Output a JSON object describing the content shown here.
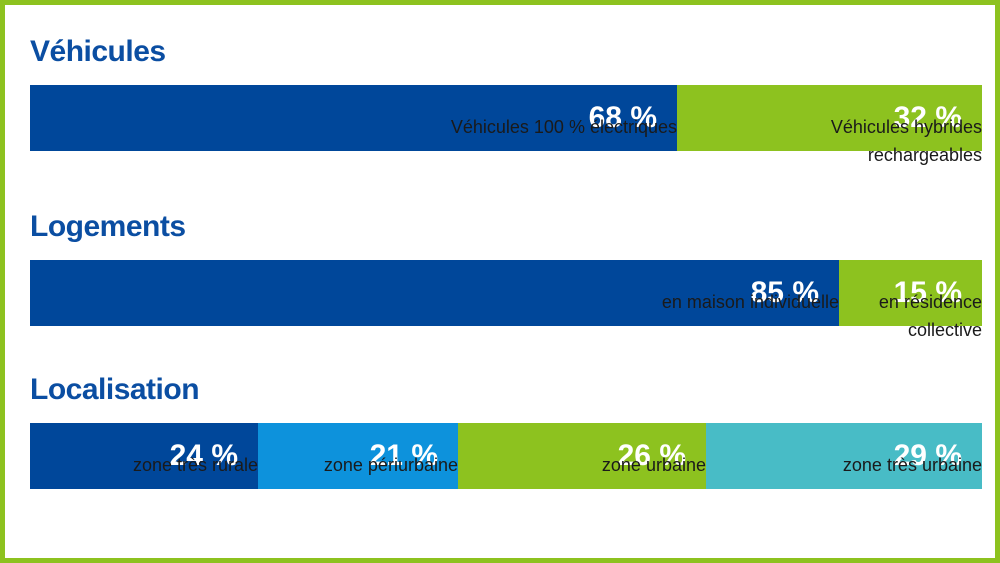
{
  "colors": {
    "dark_blue": "#00479a",
    "mid_blue": "#0d92dc",
    "green": "#8dc21f",
    "teal": "#48bcc6",
    "frame": "#8dc21f",
    "title": "#0b4ea2"
  },
  "chart_data": [
    {
      "type": "bar",
      "title": "Véhicules",
      "categories": [
        "Véhicules 100 % électriques",
        "Véhicules hybrides rechargeables"
      ],
      "values": [
        68,
        32
      ],
      "value_labels": [
        "68 %",
        "32 %"
      ],
      "segment_colors": [
        "#00479a",
        "#8dc21f"
      ],
      "stacked": true,
      "orientation": "horizontal",
      "xlim": [
        0,
        100
      ]
    },
    {
      "type": "bar",
      "title": "Logements",
      "categories": [
        "en maison individuelle",
        "en résidence collective"
      ],
      "values": [
        85,
        15
      ],
      "value_labels": [
        "85 %",
        "15 %"
      ],
      "segment_colors": [
        "#00479a",
        "#8dc21f"
      ],
      "stacked": true,
      "orientation": "horizontal",
      "xlim": [
        0,
        100
      ]
    },
    {
      "type": "bar",
      "title": "Localisation",
      "categories": [
        "zone très rurale",
        "zone périurbaine",
        "zone urbaine",
        "zone très urbaine"
      ],
      "values": [
        24,
        21,
        26,
        29
      ],
      "value_labels": [
        "24 %",
        "21 %",
        "26 %",
        "29 %"
      ],
      "segment_colors": [
        "#00479a",
        "#0d92dc",
        "#8dc21f",
        "#48bcc6"
      ],
      "stacked": true,
      "orientation": "horizontal",
      "xlim": [
        0,
        100
      ]
    }
  ]
}
